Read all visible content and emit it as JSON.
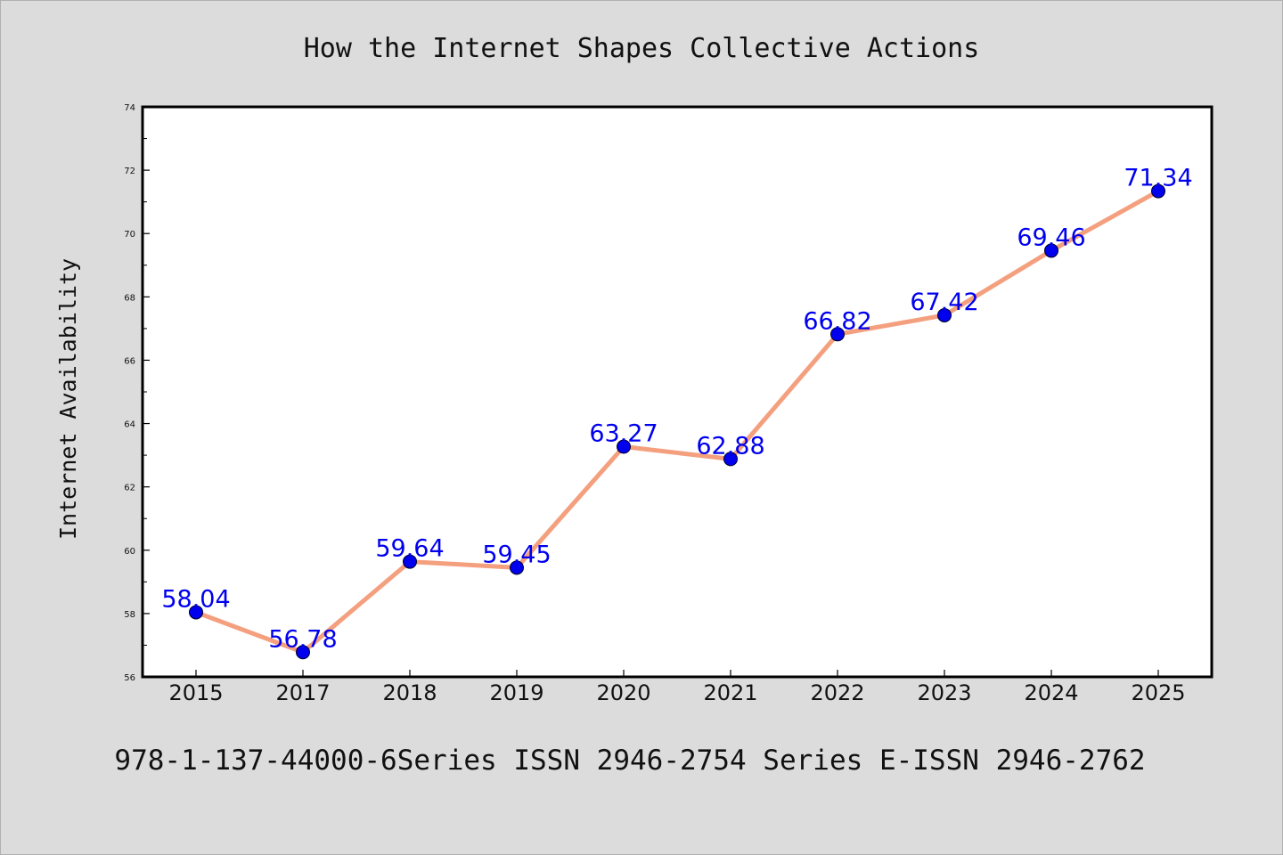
{
  "chart_data": {
    "type": "line",
    "title": "How the Internet Shapes Collective Actions",
    "xlabel": "",
    "ylabel": "Internet Availability",
    "categories": [
      "2015",
      "2017",
      "2018",
      "2019",
      "2020",
      "2021",
      "2022",
      "2023",
      "2024",
      "2025"
    ],
    "series": [
      {
        "values": [
          58.04,
          56.78,
          59.64,
          59.45,
          63.27,
          62.88,
          66.82,
          67.42,
          69.46,
          71.34
        ],
        "data_labels": [
          "58.04",
          "56.78",
          "59.64",
          "59.45",
          "63.27",
          "62.88",
          "66.82",
          "67.42",
          "69.46",
          "71.34"
        ]
      }
    ],
    "ylim": [
      56,
      74
    ],
    "yticks": [
      "56",
      "58",
      "60",
      "62",
      "64",
      "66",
      "68",
      "70",
      "72",
      "74"
    ],
    "grid": false,
    "legend": "none",
    "footer": "978-1-137-44000-6Series ISSN 2946-2754 Series E-ISSN 2946-2762",
    "colors": {
      "line": "#f4a07f",
      "marker": "#0000ee",
      "data_label": "#0000ee",
      "background": "#dcdcdc",
      "plot_area": "#ffffff"
    }
  }
}
